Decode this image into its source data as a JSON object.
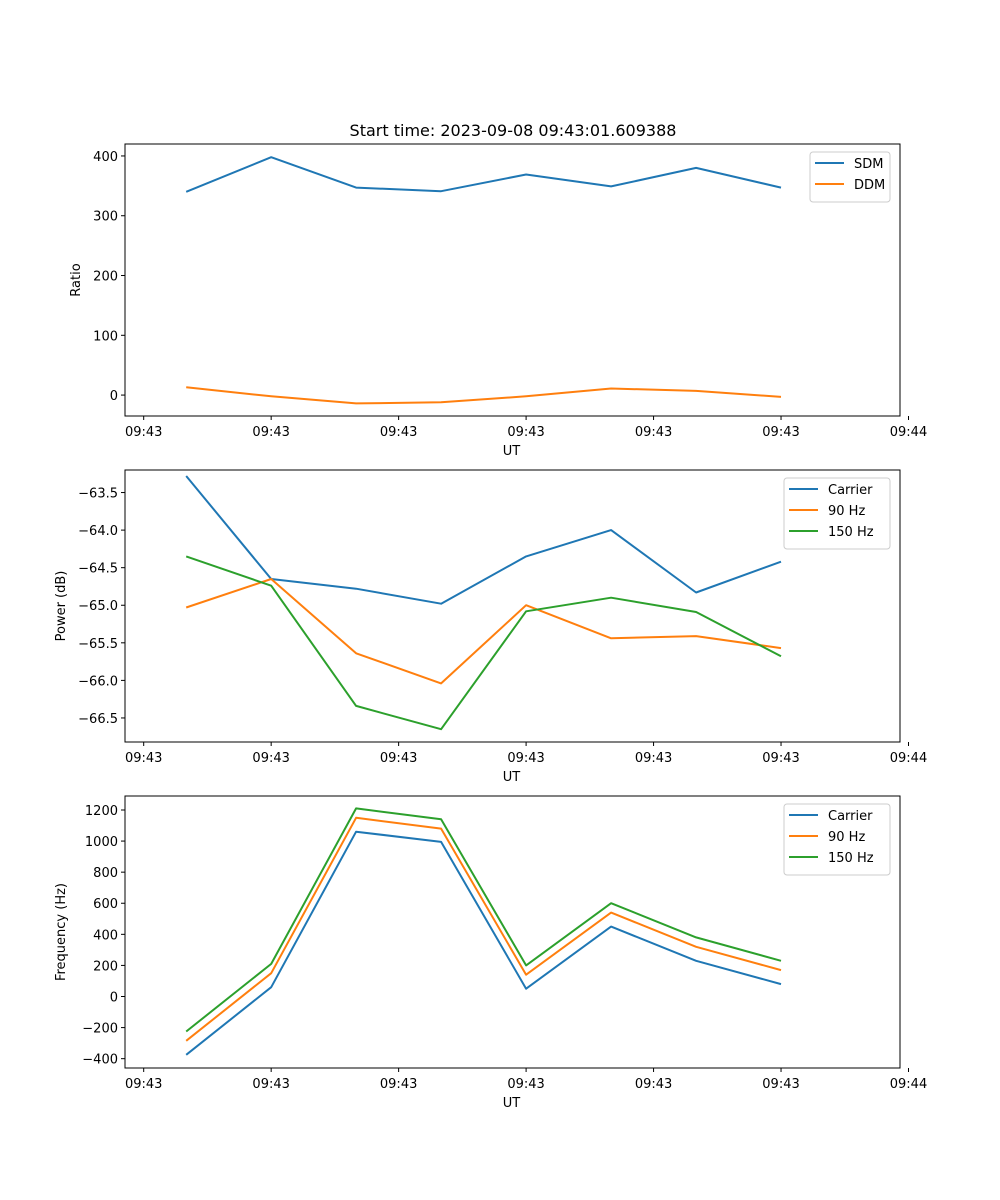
{
  "figure": {
    "title": "Start time: 2023-09-08 09:43:01.609388"
  },
  "colors": {
    "blue": "#1f77b4",
    "orange": "#ff7f0e",
    "green": "#2ca02c"
  },
  "chart_data": [
    {
      "type": "line",
      "title": "Start time: 2023-09-08 09:43:01.609388",
      "xlabel": "UT",
      "ylabel": "Ratio",
      "x": [
        1,
        2,
        3,
        4,
        5,
        6,
        7,
        8
      ],
      "xlim": [
        0.28,
        9.4
      ],
      "xticks": [
        0.5,
        2,
        3.5,
        5,
        6.5,
        8,
        9.5
      ],
      "xtick_labels": [
        "09:43",
        "09:43",
        "09:43",
        "09:43",
        "09:43",
        "09:43",
        "09:44"
      ],
      "ylim": [
        -35,
        420
      ],
      "yticks": [
        0,
        100,
        200,
        300,
        400
      ],
      "ytick_labels": [
        "0",
        "100",
        "200",
        "300",
        "400"
      ],
      "legend_position": "top-right",
      "series": [
        {
          "name": "SDM",
          "color": "#1f77b4",
          "values": [
            340,
            398,
            347,
            341,
            369,
            349,
            380,
            347
          ]
        },
        {
          "name": "DDM",
          "color": "#ff7f0e",
          "values": [
            13,
            -2,
            -14,
            -12,
            -2,
            11,
            7,
            -3
          ]
        }
      ]
    },
    {
      "type": "line",
      "xlabel": "UT",
      "ylabel": "Power (dB)",
      "x": [
        1,
        2,
        3,
        4,
        5,
        6,
        7,
        8
      ],
      "xlim": [
        0.28,
        9.4
      ],
      "xticks": [
        0.5,
        2,
        3.5,
        5,
        6.5,
        8,
        9.5
      ],
      "xtick_labels": [
        "09:43",
        "09:43",
        "09:43",
        "09:43",
        "09:43",
        "09:43",
        "09:44"
      ],
      "ylim": [
        -66.82,
        -63.2
      ],
      "yticks": [
        -63.5,
        -64.0,
        -64.5,
        -65.0,
        -65.5,
        -66.0,
        -66.5
      ],
      "ytick_labels": [
        "−63.5",
        "−64.0",
        "−64.5",
        "−65.0",
        "−65.5",
        "−66.0",
        "−66.5"
      ],
      "legend_position": "top-right",
      "series": [
        {
          "name": "Carrier",
          "color": "#1f77b4",
          "values": [
            -63.28,
            -64.65,
            -64.78,
            -64.98,
            -64.35,
            -64.0,
            -64.83,
            -64.42
          ]
        },
        {
          "name": "90 Hz",
          "color": "#ff7f0e",
          "values": [
            -65.03,
            -64.65,
            -65.64,
            -66.04,
            -65.0,
            -65.44,
            -65.41,
            -65.57
          ]
        },
        {
          "name": "150 Hz",
          "color": "#2ca02c",
          "values": [
            -64.35,
            -64.74,
            -66.34,
            -66.65,
            -65.08,
            -64.9,
            -65.09,
            -65.68
          ]
        }
      ]
    },
    {
      "type": "line",
      "xlabel": "UT",
      "ylabel": "Frequency (Hz)",
      "x": [
        1,
        2,
        3,
        4,
        5,
        6,
        7,
        8
      ],
      "xlim": [
        0.28,
        9.4
      ],
      "xticks": [
        0.5,
        2,
        3.5,
        5,
        6.5,
        8,
        9.5
      ],
      "xtick_labels": [
        "09:43",
        "09:43",
        "09:43",
        "09:43",
        "09:43",
        "09:43",
        "09:44"
      ],
      "ylim": [
        -460,
        1290
      ],
      "yticks": [
        1200,
        1000,
        800,
        600,
        400,
        200,
        0,
        -200,
        -400
      ],
      "ytick_labels": [
        "1200",
        "1000",
        "800",
        "600",
        "400",
        "200",
        "0",
        "−200",
        "−400"
      ],
      "legend_position": "top-right",
      "series": [
        {
          "name": "Carrier",
          "color": "#1f77b4",
          "values": [
            -375,
            60,
            1060,
            995,
            50,
            450,
            230,
            80
          ]
        },
        {
          "name": "90 Hz",
          "color": "#ff7f0e",
          "values": [
            -285,
            150,
            1150,
            1080,
            140,
            540,
            320,
            170
          ]
        },
        {
          "name": "150 Hz",
          "color": "#2ca02c",
          "values": [
            -225,
            210,
            1210,
            1140,
            200,
            600,
            380,
            230
          ]
        }
      ]
    }
  ]
}
